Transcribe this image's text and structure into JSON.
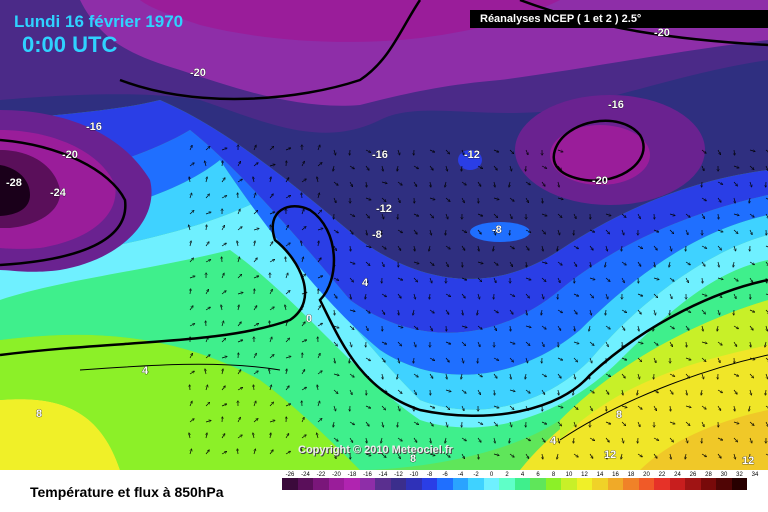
{
  "header": {
    "date": "Lundi 16 février 1970",
    "time": "0:00 UTC",
    "source": "Réanalyses NCEP ( 1 et 2 ) 2.5°"
  },
  "footer": {
    "title": "Température et flux à 850hPa",
    "copyright": "Copyright © 2010 Meteociel.fr"
  },
  "legend": {
    "labels": [
      "-26",
      "-24",
      "-22",
      "-20",
      "-18",
      "-16",
      "-14",
      "-12",
      "-10",
      "-8",
      "-6",
      "-4",
      "-2",
      "0",
      "2",
      "4",
      "6",
      "8",
      "10",
      "12",
      "14",
      "16",
      "18",
      "20",
      "22",
      "24",
      "26",
      "28",
      "30",
      "32",
      "34"
    ],
    "colors": [
      "#3b0a3b",
      "#5a0f5a",
      "#7a167a",
      "#9a1d9a",
      "#b024b0",
      "#8e2ea8",
      "#5a2f8f",
      "#3b2e8c",
      "#2f31b8",
      "#2a3ee6",
      "#1f6fff",
      "#2aa3ff",
      "#3fd2ff",
      "#6ff0ff",
      "#5fffc8",
      "#3fef8c",
      "#5fe65a",
      "#8cf028",
      "#c8f028",
      "#f0f028",
      "#f0d228",
      "#f0aa28",
      "#f08228",
      "#f05a28",
      "#e63228",
      "#c81e1e",
      "#a01414",
      "#780a0a",
      "#500505",
      "#280000"
    ]
  },
  "contour_labels": [
    "-28",
    "-24",
    "-20",
    "-20",
    "-16",
    "-16",
    "-16",
    "-12",
    "-12",
    "-8",
    "-8",
    "-16",
    "-20",
    "-20",
    "4",
    "0",
    "4",
    "8",
    "4",
    "8",
    "12",
    "12",
    "8"
  ],
  "map_colors": {
    "deep_purple": "#4a0c4a",
    "magenta": "#9a1d9a",
    "violet": "#6a2290",
    "navy": "#2f2f80",
    "blue": "#2a3ee6",
    "light_blue": "#1f6fff",
    "cyan": "#3fd2ff",
    "aqua": "#6ff0ff",
    "teal": "#3fef8c",
    "green": "#5fe65a",
    "lime": "#c8f028",
    "yellow": "#f0f028"
  }
}
